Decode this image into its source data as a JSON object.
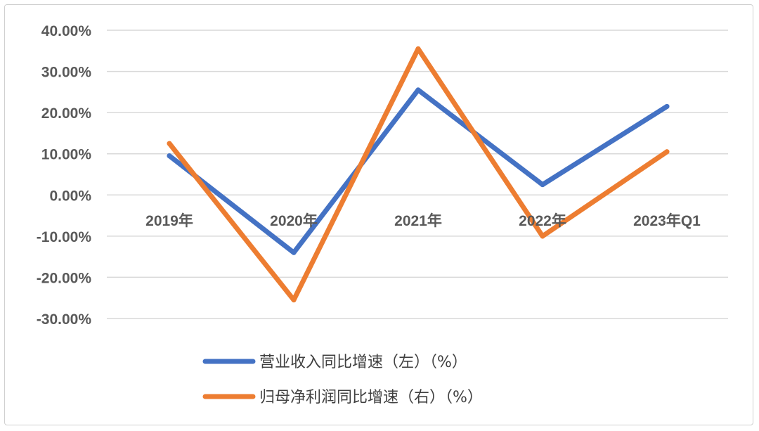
{
  "chart_data": {
    "type": "line",
    "categories": [
      "2019年",
      "2020年",
      "2021年",
      "2022年",
      "2023年Q1"
    ],
    "yticks": [
      "40.00%",
      "30.00%",
      "20.00%",
      "10.00%",
      "0.00%",
      "-10.00%",
      "-20.00%",
      "-30.00%"
    ],
    "ylim": [
      -30,
      40
    ],
    "grid": true,
    "legend_position": "bottom",
    "series": [
      {
        "name": "营业收入同比增速（左）（%）",
        "color": "#4472C4",
        "values": [
          9.5,
          -14,
          25.5,
          2.5,
          21.5
        ]
      },
      {
        "name": "归母净利润同比增速（右）（%）",
        "color": "#ED7D31",
        "values": [
          12.5,
          -25.5,
          35.5,
          -10,
          10.5
        ]
      }
    ]
  }
}
